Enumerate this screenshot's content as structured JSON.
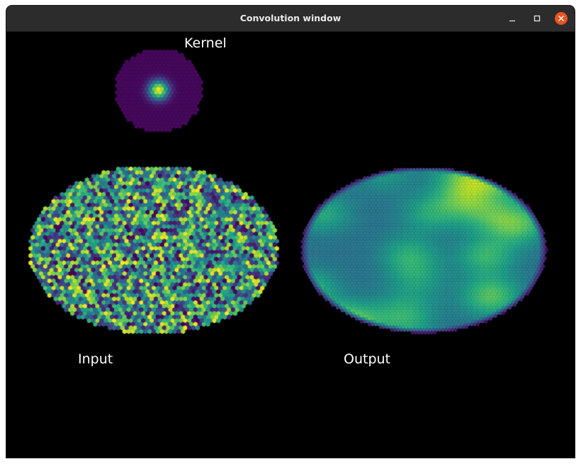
{
  "window": {
    "title": "Convolution window"
  },
  "controls": {
    "minimize_icon": "minimize-icon",
    "maximize_icon": "maximize-icon",
    "close_icon": "close-icon",
    "close_color": "#e95420"
  },
  "panels": {
    "kernel": {
      "label": "Kernel",
      "colormap": "viridis"
    },
    "input": {
      "label": "Input",
      "colormap": "viridis"
    },
    "output": {
      "label": "Output",
      "colormap": "viridis"
    }
  }
}
